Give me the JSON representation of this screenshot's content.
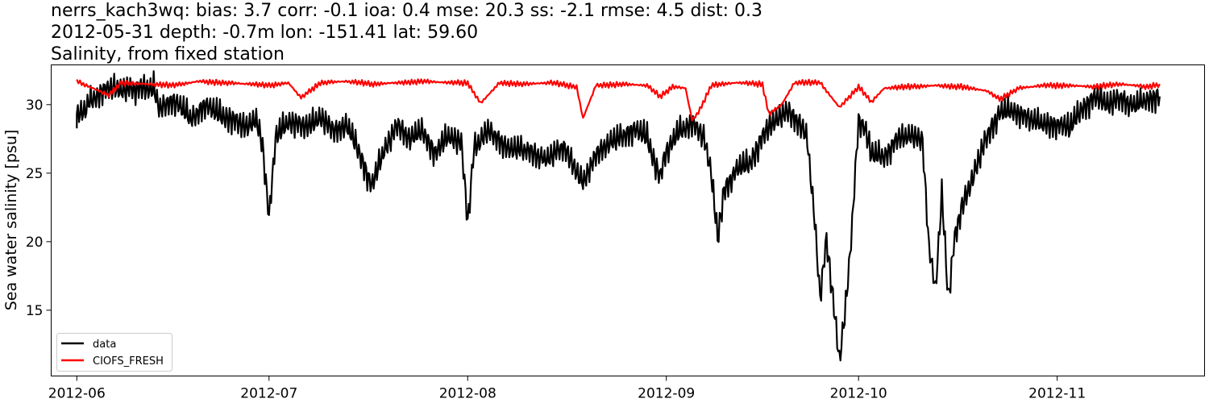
{
  "title": {
    "line1": "nerrs_kach3wq: bias: 3.7  corr: -0.1  ioa: 0.4  mse: 20.3  ss: -2.1  rmse: 4.5  dist: 0.3",
    "line2": "2012-05-31 depth: -0.7m lon: -151.41 lat: 59.60",
    "line3": "Salinity, from fixed station"
  },
  "chart_data": {
    "type": "line",
    "title": "nerrs_kach3wq: bias: 3.7  corr: -0.1  ioa: 0.4  mse: 20.3  ss: -2.1  rmse: 4.5  dist: 0.3 / 2012-05-31 depth: -0.7m lon: -151.41 lat: 59.60 / Salinity, from fixed station",
    "xlabel": "",
    "ylabel": "Sea water salinity [psu]",
    "xlim": [
      "2012-05-28",
      "2012-11-24"
    ],
    "ylim": [
      10.2,
      32.9
    ],
    "x_ticks": [
      "2012-06",
      "2012-07",
      "2012-08",
      "2012-09",
      "2012-10",
      "2012-11"
    ],
    "y_ticks": [
      15,
      20,
      25,
      30
    ],
    "grid": false,
    "legend_position": "lower-left",
    "colors": {
      "data": "#000000",
      "CIOFS_FRESH": "#ff0000"
    },
    "series": [
      {
        "name": "data",
        "points": [
          [
            "2012-06-01",
            28.2
          ],
          [
            "2012-06-01",
            29.2
          ],
          [
            "2012-06-02",
            29.5
          ],
          [
            "2012-06-03",
            30.2
          ],
          [
            "2012-06-05",
            31.0
          ],
          [
            "2012-06-07",
            31.2
          ],
          [
            "2012-06-10",
            31.1
          ],
          [
            "2012-06-13",
            31.3
          ],
          [
            "2012-06-14",
            29.6
          ],
          [
            "2012-06-16",
            30.4
          ],
          [
            "2012-06-19",
            28.9
          ],
          [
            "2012-06-21",
            30.0
          ],
          [
            "2012-06-23",
            29.3
          ],
          [
            "2012-06-25",
            29.0
          ],
          [
            "2012-06-27",
            28.4
          ],
          [
            "2012-06-29",
            28.8
          ],
          [
            "2012-06-30",
            27.0
          ],
          [
            "2012-07-01",
            21.7
          ],
          [
            "2012-07-02",
            27.6
          ],
          [
            "2012-07-04",
            28.8
          ],
          [
            "2012-07-07",
            28.3
          ],
          [
            "2012-07-09",
            29.2
          ],
          [
            "2012-07-11",
            28.0
          ],
          [
            "2012-07-13",
            28.6
          ],
          [
            "2012-07-15",
            26.6
          ],
          [
            "2012-07-17",
            24.0
          ],
          [
            "2012-07-19",
            26.8
          ],
          [
            "2012-07-21",
            28.4
          ],
          [
            "2012-07-23",
            27.6
          ],
          [
            "2012-07-25",
            28.0
          ],
          [
            "2012-07-27",
            26.4
          ],
          [
            "2012-07-29",
            27.8
          ],
          [
            "2012-07-31",
            27.2
          ],
          [
            "2012-08-01",
            21.4
          ],
          [
            "2012-08-02",
            26.8
          ],
          [
            "2012-08-04",
            28.1
          ],
          [
            "2012-08-07",
            27.0
          ],
          [
            "2012-08-10",
            26.6
          ],
          [
            "2012-08-13",
            26.1
          ],
          [
            "2012-08-16",
            26.8
          ],
          [
            "2012-08-19",
            24.4
          ],
          [
            "2012-08-21",
            26.2
          ],
          [
            "2012-08-23",
            27.3
          ],
          [
            "2012-08-25",
            27.6
          ],
          [
            "2012-08-27",
            28.2
          ],
          [
            "2012-08-29",
            27.6
          ],
          [
            "2012-08-31",
            24.6
          ],
          [
            "2012-09-01",
            26.6
          ],
          [
            "2012-09-03",
            28.0
          ],
          [
            "2012-09-05",
            28.7
          ],
          [
            "2012-09-07",
            27.4
          ],
          [
            "2012-09-08",
            25.1
          ],
          [
            "2012-09-09",
            20.2
          ],
          [
            "2012-09-10",
            23.7
          ],
          [
            "2012-09-12",
            25.3
          ],
          [
            "2012-09-14",
            25.7
          ],
          [
            "2012-09-16",
            27.6
          ],
          [
            "2012-09-18",
            29.0
          ],
          [
            "2012-09-20",
            29.4
          ],
          [
            "2012-09-22",
            28.6
          ],
          [
            "2012-09-23",
            27.5
          ],
          [
            "2012-09-24",
            22.4
          ],
          [
            "2012-09-25",
            16.0
          ],
          [
            "2012-09-26",
            20.1
          ],
          [
            "2012-09-27",
            15.9
          ],
          [
            "2012-09-28",
            11.4
          ],
          [
            "2012-09-29",
            15.3
          ],
          [
            "2012-09-30",
            21.2
          ],
          [
            "2012-10-01",
            28.9
          ],
          [
            "2012-10-02",
            28.2
          ],
          [
            "2012-10-03",
            26.4
          ],
          [
            "2012-10-05",
            26.2
          ],
          [
            "2012-10-07",
            27.4
          ],
          [
            "2012-10-09",
            27.9
          ],
          [
            "2012-10-11",
            27.2
          ],
          [
            "2012-10-12",
            19.5
          ],
          [
            "2012-10-13",
            16.6
          ],
          [
            "2012-10-14",
            23.5
          ],
          [
            "2012-10-15",
            15.8
          ],
          [
            "2012-10-16",
            20.3
          ],
          [
            "2012-10-17",
            22.3
          ],
          [
            "2012-10-19",
            25.0
          ],
          [
            "2012-10-21",
            27.6
          ],
          [
            "2012-10-23",
            29.4
          ],
          [
            "2012-10-25",
            29.6
          ],
          [
            "2012-10-28",
            28.8
          ],
          [
            "2012-10-31",
            28.6
          ],
          [
            "2012-11-03",
            28.3
          ],
          [
            "2012-11-05",
            29.8
          ],
          [
            "2012-11-07",
            30.5
          ],
          [
            "2012-11-09",
            30.1
          ],
          [
            "2012-11-11",
            30.4
          ],
          [
            "2012-11-13",
            29.9
          ],
          [
            "2012-11-15",
            30.4
          ],
          [
            "2012-11-17",
            30.6
          ]
        ]
      },
      {
        "name": "CIOFS_FRESH",
        "points": [
          [
            "2012-06-01",
            31.7
          ],
          [
            "2012-06-03",
            31.3
          ],
          [
            "2012-06-06",
            30.7
          ],
          [
            "2012-06-08",
            31.6
          ],
          [
            "2012-06-12",
            31.5
          ],
          [
            "2012-06-16",
            31.4
          ],
          [
            "2012-06-20",
            31.7
          ],
          [
            "2012-06-24",
            31.6
          ],
          [
            "2012-06-28",
            31.5
          ],
          [
            "2012-07-01",
            31.4
          ],
          [
            "2012-07-04",
            31.6
          ],
          [
            "2012-07-06",
            30.5
          ],
          [
            "2012-07-09",
            31.6
          ],
          [
            "2012-07-13",
            31.7
          ],
          [
            "2012-07-17",
            31.5
          ],
          [
            "2012-07-21",
            31.6
          ],
          [
            "2012-07-25",
            31.7
          ],
          [
            "2012-07-29",
            31.6
          ],
          [
            "2012-08-01",
            31.6
          ],
          [
            "2012-08-03",
            30.1
          ],
          [
            "2012-08-06",
            31.6
          ],
          [
            "2012-08-10",
            31.5
          ],
          [
            "2012-08-14",
            31.6
          ],
          [
            "2012-08-18",
            31.3
          ],
          [
            "2012-08-19",
            29.0
          ],
          [
            "2012-08-21",
            31.4
          ],
          [
            "2012-08-25",
            31.5
          ],
          [
            "2012-08-29",
            31.4
          ],
          [
            "2012-08-31",
            30.6
          ],
          [
            "2012-09-02",
            31.3
          ],
          [
            "2012-09-04",
            31.2
          ],
          [
            "2012-09-05",
            28.9
          ],
          [
            "2012-09-06",
            29.4
          ],
          [
            "2012-09-08",
            31.4
          ],
          [
            "2012-09-12",
            31.6
          ],
          [
            "2012-09-16",
            31.5
          ],
          [
            "2012-09-17",
            29.3
          ],
          [
            "2012-09-19",
            30.0
          ],
          [
            "2012-09-21",
            31.6
          ],
          [
            "2012-09-25",
            31.6
          ],
          [
            "2012-09-28",
            29.8
          ],
          [
            "2012-10-01",
            31.3
          ],
          [
            "2012-10-03",
            30.2
          ],
          [
            "2012-10-05",
            31.2
          ],
          [
            "2012-10-09",
            31.3
          ],
          [
            "2012-10-13",
            31.4
          ],
          [
            "2012-10-17",
            31.3
          ],
          [
            "2012-10-21",
            31.0
          ],
          [
            "2012-10-23",
            30.4
          ],
          [
            "2012-10-26",
            31.2
          ],
          [
            "2012-10-30",
            31.4
          ],
          [
            "2012-11-03",
            31.4
          ],
          [
            "2012-11-07",
            31.3
          ],
          [
            "2012-11-11",
            31.5
          ],
          [
            "2012-11-15",
            31.3
          ],
          [
            "2012-11-17",
            31.5
          ]
        ]
      }
    ]
  }
}
